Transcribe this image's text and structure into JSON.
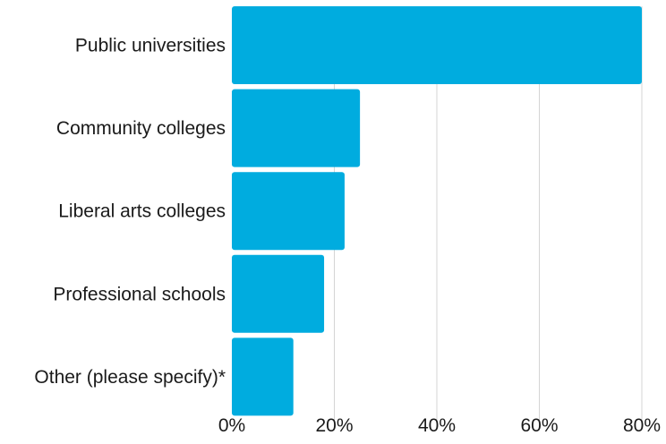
{
  "colors": {
    "bar": "#00acdf",
    "grid": "#d4d4d4",
    "text": "#1a1a1a"
  },
  "chart_data": {
    "type": "bar",
    "orientation": "horizontal",
    "title": "",
    "xlabel": "",
    "ylabel": "",
    "categories": [
      "Public universities",
      "Community colleges",
      "Liberal arts colleges",
      "Professional schools",
      "Other (please specify)*"
    ],
    "values": [
      80,
      25,
      22,
      18,
      12
    ],
    "unit": "%",
    "xlim": [
      0,
      80
    ],
    "x_ticks": [
      "0%",
      "20%",
      "40%",
      "60%",
      "80%"
    ],
    "x_tick_values": [
      0,
      20,
      40,
      60,
      80
    ],
    "grid": "vertical",
    "legend": "none"
  }
}
